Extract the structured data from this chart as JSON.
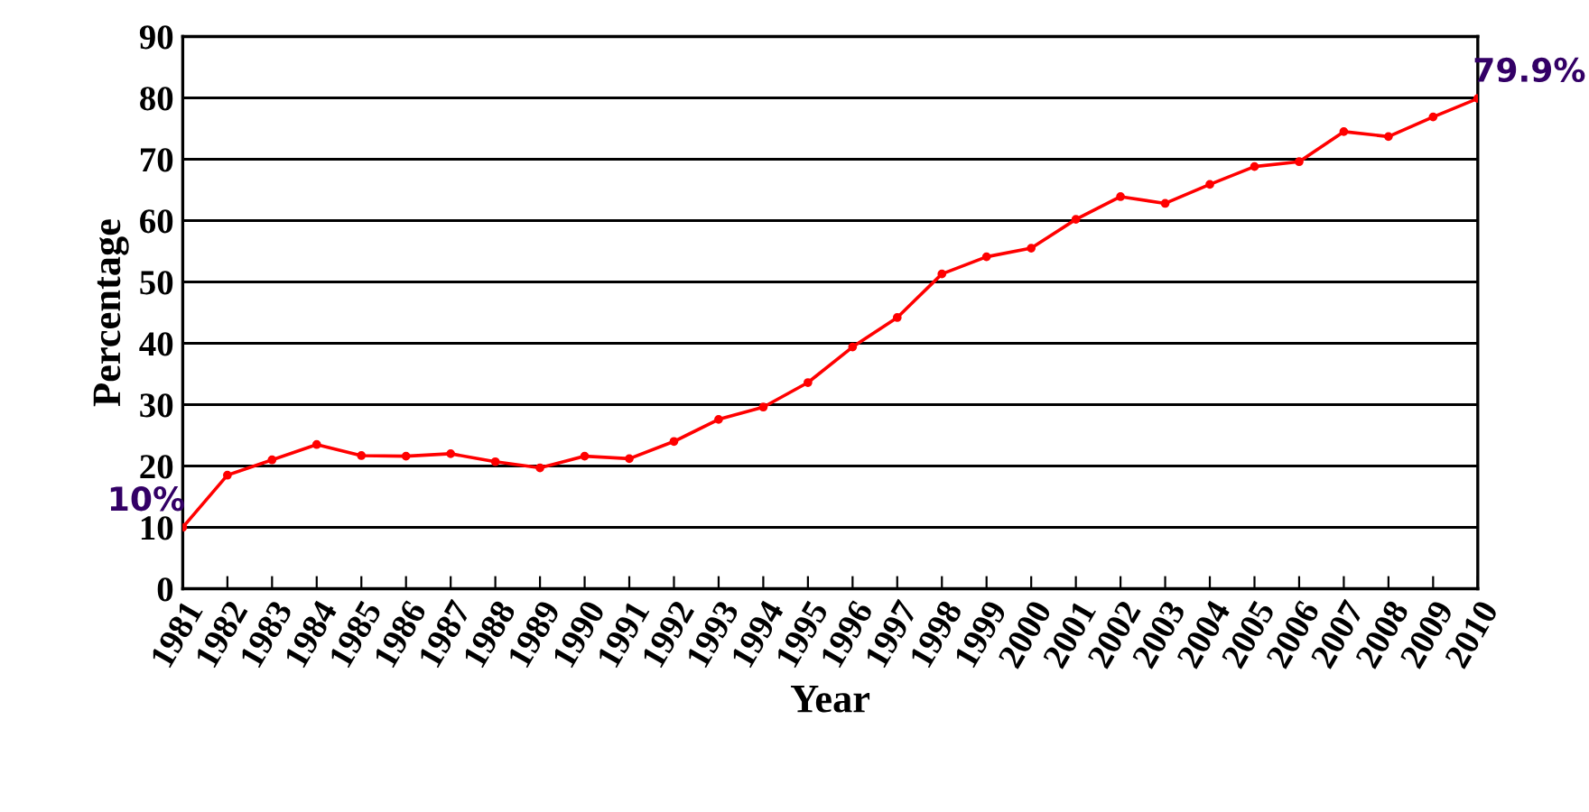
{
  "chart_data": {
    "type": "line",
    "xlabel": "Year",
    "ylabel": "Percentage",
    "categories": [
      "1981",
      "1982",
      "1983",
      "1984",
      "1985",
      "1986",
      "1987",
      "1988",
      "1989",
      "1990",
      "1991",
      "1992",
      "1993",
      "1994",
      "1995",
      "1996",
      "1997",
      "1998",
      "1999",
      "2000",
      "2001",
      "2002",
      "2003",
      "2004",
      "2005",
      "2006",
      "2007",
      "2008",
      "2009",
      "2010"
    ],
    "series": [
      {
        "color": "#ff0000",
        "values": [
          10,
          18.5,
          21,
          23.5,
          21.7,
          21.6,
          22,
          20.7,
          19.7,
          21.6,
          21.2,
          24,
          27.6,
          29.6,
          33.6,
          39.4,
          44.2,
          51.3,
          54.1,
          55.5,
          60.2,
          63.9,
          62.8,
          65.9,
          68.8,
          69.6,
          74.5,
          73.7,
          76.9,
          79.9
        ],
        "value_labels": [
          "10%",
          null,
          null,
          null,
          null,
          null,
          null,
          null,
          null,
          null,
          null,
          null,
          null,
          null,
          null,
          null,
          null,
          null,
          null,
          null,
          null,
          null,
          null,
          null,
          null,
          null,
          null,
          null,
          null,
          "79.9%"
        ]
      }
    ],
    "ylim": [
      0,
      90
    ],
    "yticks": [
      0,
      10,
      20,
      30,
      40,
      50,
      60,
      70,
      80,
      90
    ],
    "grid": "y",
    "marker": "circle",
    "line_style": "solid",
    "legend": false
  }
}
